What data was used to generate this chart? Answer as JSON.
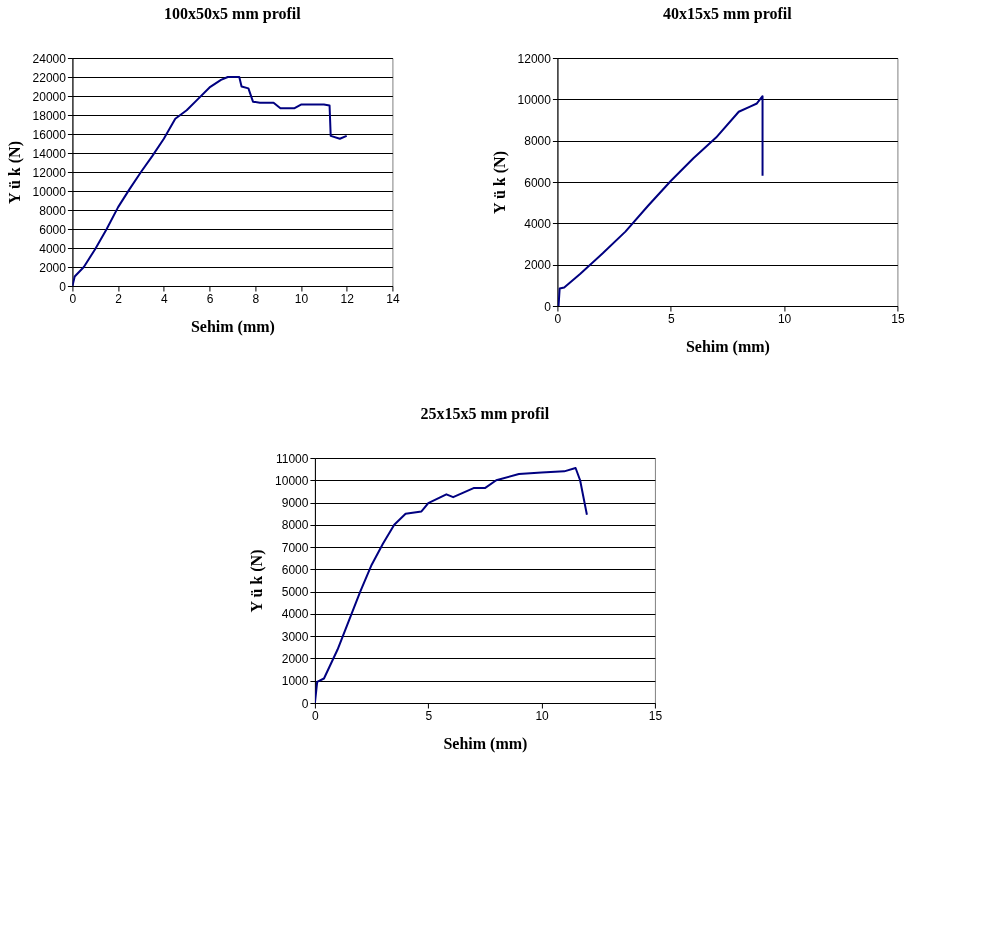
{
  "chart_data": [
    {
      "type": "line",
      "title": "100x50x5 mm profil",
      "xlabel": "Sehim (mm)",
      "ylabel": "Y ü k  (N)",
      "xlim": [
        0,
        14
      ],
      "xticks": [
        0,
        2,
        4,
        6,
        8,
        10,
        12,
        14
      ],
      "ylim": [
        0,
        24000
      ],
      "yticks": [
        0,
        2000,
        4000,
        6000,
        8000,
        10000,
        12000,
        14000,
        16000,
        18000,
        20000,
        22000,
        24000
      ],
      "grid": "y",
      "line_style": "solid",
      "series": [
        {
          "color": "#000080",
          "x": [
            0,
            0.1,
            0.5,
            1,
            1.5,
            2,
            2.5,
            3,
            3.5,
            4,
            4.5,
            5,
            5.5,
            6,
            6.5,
            6.8,
            7.3,
            7.4,
            7.7,
            7.9,
            8.2,
            8.8,
            9.1,
            9.7,
            10,
            11,
            11.25,
            11.3,
            11.7,
            12
          ],
          "values": [
            0,
            1000,
            2000,
            3900,
            6000,
            8300,
            10200,
            12000,
            13700,
            15500,
            17600,
            18500,
            19700,
            20900,
            21700,
            22000,
            22000,
            21000,
            20800,
            19400,
            19300,
            19300,
            18700,
            18700,
            19100,
            19100,
            19000,
            15800,
            15500,
            15800
          ]
        }
      ]
    },
    {
      "type": "line",
      "title": "40x15x5 mm profil",
      "xlabel": "Sehim (mm)",
      "ylabel": "Y ü k  (N)",
      "xlim": [
        0,
        15
      ],
      "xticks": [
        0,
        5,
        10,
        15
      ],
      "ylim": [
        0,
        12000
      ],
      "yticks": [
        0,
        2000,
        4000,
        6000,
        8000,
        10000,
        12000
      ],
      "grid": "y",
      "line_style": "solid",
      "series": [
        {
          "color": "#000080",
          "x": [
            0.05,
            0.1,
            0.3,
            1,
            2,
            3,
            4,
            5,
            6,
            7,
            8,
            8.5,
            8.8,
            9.05,
            9.05
          ],
          "values": [
            0,
            850,
            900,
            1550,
            2550,
            3600,
            4850,
            6050,
            7150,
            8150,
            9400,
            9650,
            9800,
            10150,
            6300
          ]
        }
      ]
    },
    {
      "type": "line",
      "title": "25x15x5 mm profil",
      "xlabel": "Sehim (mm)",
      "ylabel": "Y ü k  (N)",
      "xlim": [
        0,
        15
      ],
      "xticks": [
        0,
        5,
        10,
        15
      ],
      "ylim": [
        0,
        11000
      ],
      "yticks": [
        0,
        1000,
        2000,
        3000,
        4000,
        5000,
        6000,
        7000,
        8000,
        9000,
        10000,
        11000
      ],
      "grid": "y",
      "line_style": "solid",
      "series": [
        {
          "color": "#000080",
          "x": [
            0,
            0.1,
            0.4,
            1,
            1.5,
            2,
            2.5,
            3,
            3.5,
            4,
            4.7,
            5,
            5.8,
            6.1,
            7,
            7.5,
            8,
            9,
            10,
            11,
            11.5,
            11.7,
            12
          ],
          "values": [
            0,
            950,
            1100,
            2400,
            3700,
            5000,
            6200,
            7150,
            8000,
            8500,
            8600,
            8970,
            9370,
            9240,
            9650,
            9650,
            10000,
            10280,
            10350,
            10400,
            10550,
            10000,
            8450
          ]
        }
      ]
    }
  ]
}
